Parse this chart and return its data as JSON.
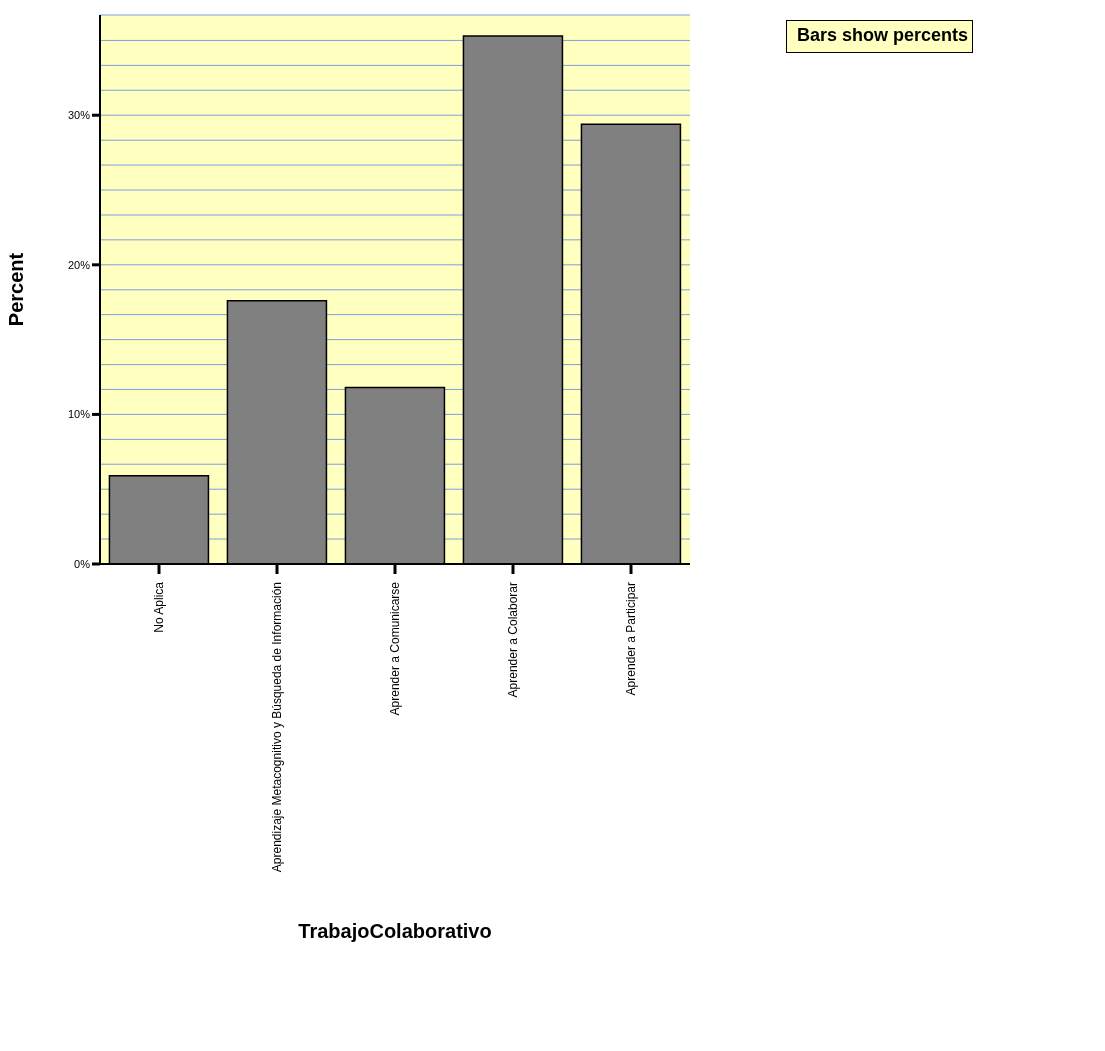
{
  "chart_data": {
    "type": "bar",
    "xlabel": "TrabajoColaborativo",
    "ylabel": "Percent",
    "categories": [
      "No Aplica",
      "Aprendizaje Metacognitivo y Búsqueda de Información",
      "Aprender a Comunicarse",
      "Aprender a Colaborar",
      "Aprender a Participar"
    ],
    "values": [
      5.9,
      17.6,
      11.8,
      35.3,
      29.4
    ],
    "color": "#808080",
    "ylim": [
      0,
      36.7
    ],
    "yticks": [
      {
        "value": 0,
        "label": "0%"
      },
      {
        "value": 1.67,
        "label": null
      },
      {
        "value": 3.33,
        "label": null
      },
      {
        "value": 5,
        "label": null
      },
      {
        "value": 6.67,
        "label": null
      },
      {
        "value": 8.33,
        "label": null
      },
      {
        "value": 10,
        "label": "10%"
      },
      {
        "value": 11.67,
        "label": null
      },
      {
        "value": 13.33,
        "label": null
      },
      {
        "value": 15,
        "label": null
      },
      {
        "value": 16.67,
        "label": null
      },
      {
        "value": 18.33,
        "label": null
      },
      {
        "value": 20,
        "label": "20%"
      },
      {
        "value": 21.67,
        "label": null
      },
      {
        "value": 23.33,
        "label": null
      },
      {
        "value": 25,
        "label": null
      },
      {
        "value": 26.67,
        "label": null
      },
      {
        "value": 28.33,
        "label": null
      },
      {
        "value": 30,
        "label": "30%"
      },
      {
        "value": 31.67,
        "label": null
      },
      {
        "value": 33.33,
        "label": null
      },
      {
        "value": 35,
        "label": null
      }
    ],
    "grid": "y",
    "bands": [
      {
        "axis": "y",
        "from": 0,
        "to": 36.7,
        "color": "#ffffc0"
      }
    ],
    "annotations": [
      "Bars show percents"
    ]
  }
}
